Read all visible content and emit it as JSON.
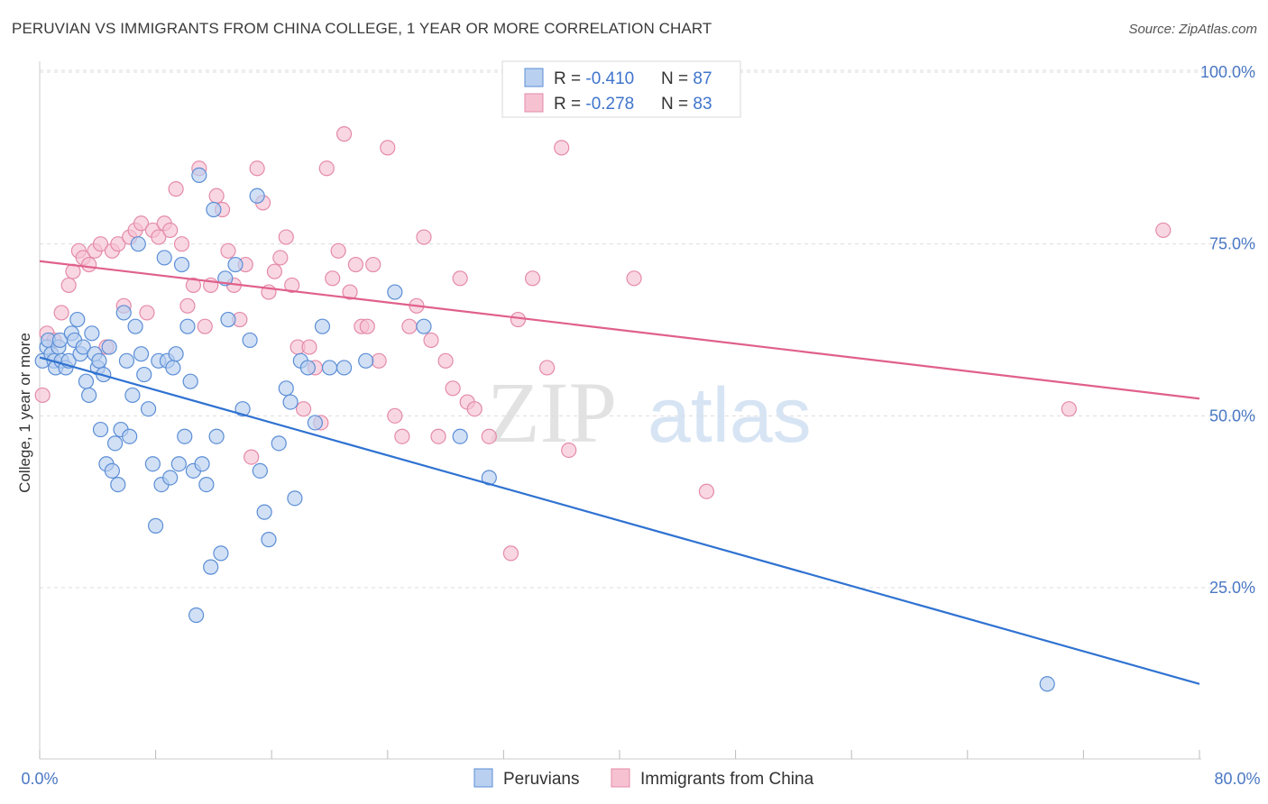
{
  "title": "PERUVIAN VS IMMIGRANTS FROM CHINA COLLEGE, 1 YEAR OR MORE CORRELATION CHART",
  "source": "Source: ZipAtlas.com",
  "watermark": {
    "zip": "ZIP",
    "atlas": "atlas"
  },
  "colors": {
    "blue_fill": "#b9d0f0",
    "blue_stroke": "#5b8ed6",
    "blue_line": "#2f72d1",
    "pink_fill": "#f6c2d2",
    "pink_stroke": "#e48aa9",
    "pink_line": "#e0608c",
    "grid": "#dddddd",
    "tick_text": "#4a78c4"
  },
  "legend": {
    "rows": [
      {
        "r_label": "R = ",
        "r_value": "-0.410",
        "n_label": "N = ",
        "n_value": "87"
      },
      {
        "r_label": "R = ",
        "r_value": "-0.278",
        "n_label": "N = ",
        "n_value": "83"
      }
    ]
  },
  "bottom_legend": [
    "Peruvians",
    "Immigrants from China"
  ],
  "chart_data": {
    "type": "scatter",
    "title": "PERUVIAN VS IMMIGRANTS FROM CHINA COLLEGE, 1 YEAR OR MORE CORRELATION CHART",
    "xlabel": "",
    "ylabel": "College, 1 year or more",
    "xlim": [
      0,
      80
    ],
    "ylim": [
      0,
      105
    ],
    "x_tick_labels": [
      "0.0%",
      "80.0%"
    ],
    "y_ticks": [
      25,
      50,
      75,
      100
    ],
    "y_tick_labels": [
      "25.0%",
      "50.0%",
      "75.0%",
      "100.0%"
    ],
    "grid": true,
    "legend_position": "top-center",
    "series": [
      {
        "name": "Peruvians",
        "R": -0.41,
        "N": 87,
        "trend": {
          "x0": 0,
          "y0": 58.5,
          "x1": 80,
          "y1": 11
        },
        "points": [
          [
            0.2,
            58
          ],
          [
            0.5,
            60
          ],
          [
            0.6,
            61
          ],
          [
            0.8,
            59
          ],
          [
            1.0,
            58
          ],
          [
            1.1,
            57
          ],
          [
            1.3,
            60
          ],
          [
            1.4,
            61
          ],
          [
            1.5,
            58
          ],
          [
            1.8,
            57
          ],
          [
            2.0,
            58
          ],
          [
            2.2,
            62
          ],
          [
            2.4,
            61
          ],
          [
            2.6,
            64
          ],
          [
            2.8,
            59
          ],
          [
            3.0,
            60
          ],
          [
            3.2,
            55
          ],
          [
            3.4,
            53
          ],
          [
            3.6,
            62
          ],
          [
            3.8,
            59
          ],
          [
            4.0,
            57
          ],
          [
            4.2,
            48
          ],
          [
            4.4,
            56
          ],
          [
            4.6,
            43
          ],
          [
            4.8,
            60
          ],
          [
            5.0,
            42
          ],
          [
            5.2,
            46
          ],
          [
            5.4,
            40
          ],
          [
            5.6,
            48
          ],
          [
            5.8,
            65
          ],
          [
            6.0,
            58
          ],
          [
            6.2,
            47
          ],
          [
            6.4,
            53
          ],
          [
            6.6,
            63
          ],
          [
            6.8,
            75
          ],
          [
            7.0,
            59
          ],
          [
            7.2,
            56
          ],
          [
            7.5,
            51
          ],
          [
            7.8,
            43
          ],
          [
            8.0,
            34
          ],
          [
            8.2,
            58
          ],
          [
            8.4,
            40
          ],
          [
            8.6,
            73
          ],
          [
            8.8,
            58
          ],
          [
            9.0,
            41
          ],
          [
            9.2,
            57
          ],
          [
            9.4,
            59
          ],
          [
            9.6,
            43
          ],
          [
            9.8,
            72
          ],
          [
            10.0,
            47
          ],
          [
            10.2,
            63
          ],
          [
            10.4,
            55
          ],
          [
            10.6,
            42
          ],
          [
            10.8,
            21
          ],
          [
            11.0,
            85
          ],
          [
            11.2,
            43
          ],
          [
            11.5,
            40
          ],
          [
            11.8,
            28
          ],
          [
            12.0,
            80
          ],
          [
            12.2,
            47
          ],
          [
            12.5,
            30
          ],
          [
            12.8,
            70
          ],
          [
            13.0,
            64
          ],
          [
            13.5,
            72
          ],
          [
            14.0,
            51
          ],
          [
            14.5,
            61
          ],
          [
            15.0,
            82
          ],
          [
            15.2,
            42
          ],
          [
            15.5,
            36
          ],
          [
            15.8,
            32
          ],
          [
            16.5,
            46
          ],
          [
            17.0,
            54
          ],
          [
            17.3,
            52
          ],
          [
            17.6,
            38
          ],
          [
            18.0,
            58
          ],
          [
            18.5,
            57
          ],
          [
            19.0,
            49
          ],
          [
            19.5,
            63
          ],
          [
            20.0,
            57
          ],
          [
            21.0,
            57
          ],
          [
            22.5,
            58
          ],
          [
            24.5,
            68
          ],
          [
            26.5,
            63
          ],
          [
            29.0,
            47
          ],
          [
            31.0,
            41
          ],
          [
            69.5,
            11
          ],
          [
            4.1,
            58
          ]
        ]
      },
      {
        "name": "Immigrants from China",
        "R": -0.278,
        "N": 83,
        "trend": {
          "x0": 0,
          "y0": 72.5,
          "x1": 80,
          "y1": 52.5
        },
        "points": [
          [
            0.2,
            53
          ],
          [
            0.5,
            62
          ],
          [
            1.0,
            61
          ],
          [
            1.5,
            65
          ],
          [
            2.0,
            69
          ],
          [
            2.3,
            71
          ],
          [
            2.7,
            74
          ],
          [
            3.0,
            73
          ],
          [
            3.4,
            72
          ],
          [
            3.8,
            74
          ],
          [
            4.2,
            75
          ],
          [
            4.6,
            60
          ],
          [
            5.0,
            74
          ],
          [
            5.4,
            75
          ],
          [
            5.8,
            66
          ],
          [
            6.2,
            76
          ],
          [
            6.6,
            77
          ],
          [
            7.0,
            78
          ],
          [
            7.4,
            65
          ],
          [
            7.8,
            77
          ],
          [
            8.2,
            76
          ],
          [
            8.6,
            78
          ],
          [
            9.0,
            77
          ],
          [
            9.4,
            83
          ],
          [
            9.8,
            75
          ],
          [
            10.2,
            66
          ],
          [
            10.6,
            69
          ],
          [
            11.0,
            86
          ],
          [
            11.4,
            63
          ],
          [
            11.8,
            69
          ],
          [
            12.2,
            82
          ],
          [
            12.6,
            80
          ],
          [
            13.0,
            74
          ],
          [
            13.4,
            69
          ],
          [
            13.8,
            64
          ],
          [
            14.2,
            72
          ],
          [
            14.6,
            44
          ],
          [
            15.0,
            86
          ],
          [
            15.4,
            81
          ],
          [
            15.8,
            68
          ],
          [
            16.2,
            71
          ],
          [
            16.6,
            73
          ],
          [
            17.0,
            76
          ],
          [
            17.4,
            69
          ],
          [
            17.8,
            60
          ],
          [
            18.2,
            51
          ],
          [
            18.6,
            60
          ],
          [
            19.0,
            57
          ],
          [
            19.4,
            49
          ],
          [
            19.8,
            86
          ],
          [
            20.2,
            70
          ],
          [
            20.6,
            74
          ],
          [
            21.0,
            91
          ],
          [
            21.4,
            68
          ],
          [
            21.8,
            72
          ],
          [
            22.2,
            63
          ],
          [
            22.6,
            63
          ],
          [
            23.0,
            72
          ],
          [
            23.4,
            58
          ],
          [
            24.0,
            89
          ],
          [
            24.5,
            50
          ],
          [
            25.0,
            47
          ],
          [
            25.5,
            63
          ],
          [
            26.0,
            66
          ],
          [
            26.5,
            76
          ],
          [
            27.0,
            61
          ],
          [
            27.5,
            47
          ],
          [
            28.0,
            58
          ],
          [
            28.5,
            54
          ],
          [
            29.0,
            70
          ],
          [
            29.5,
            52
          ],
          [
            30.0,
            51
          ],
          [
            31.0,
            47
          ],
          [
            32.5,
            30
          ],
          [
            33.0,
            64
          ],
          [
            34.0,
            70
          ],
          [
            35.0,
            57
          ],
          [
            36.0,
            89
          ],
          [
            36.5,
            45
          ],
          [
            41.0,
            70
          ],
          [
            46.0,
            39
          ],
          [
            71.0,
            51
          ],
          [
            77.5,
            77
          ]
        ]
      }
    ]
  }
}
